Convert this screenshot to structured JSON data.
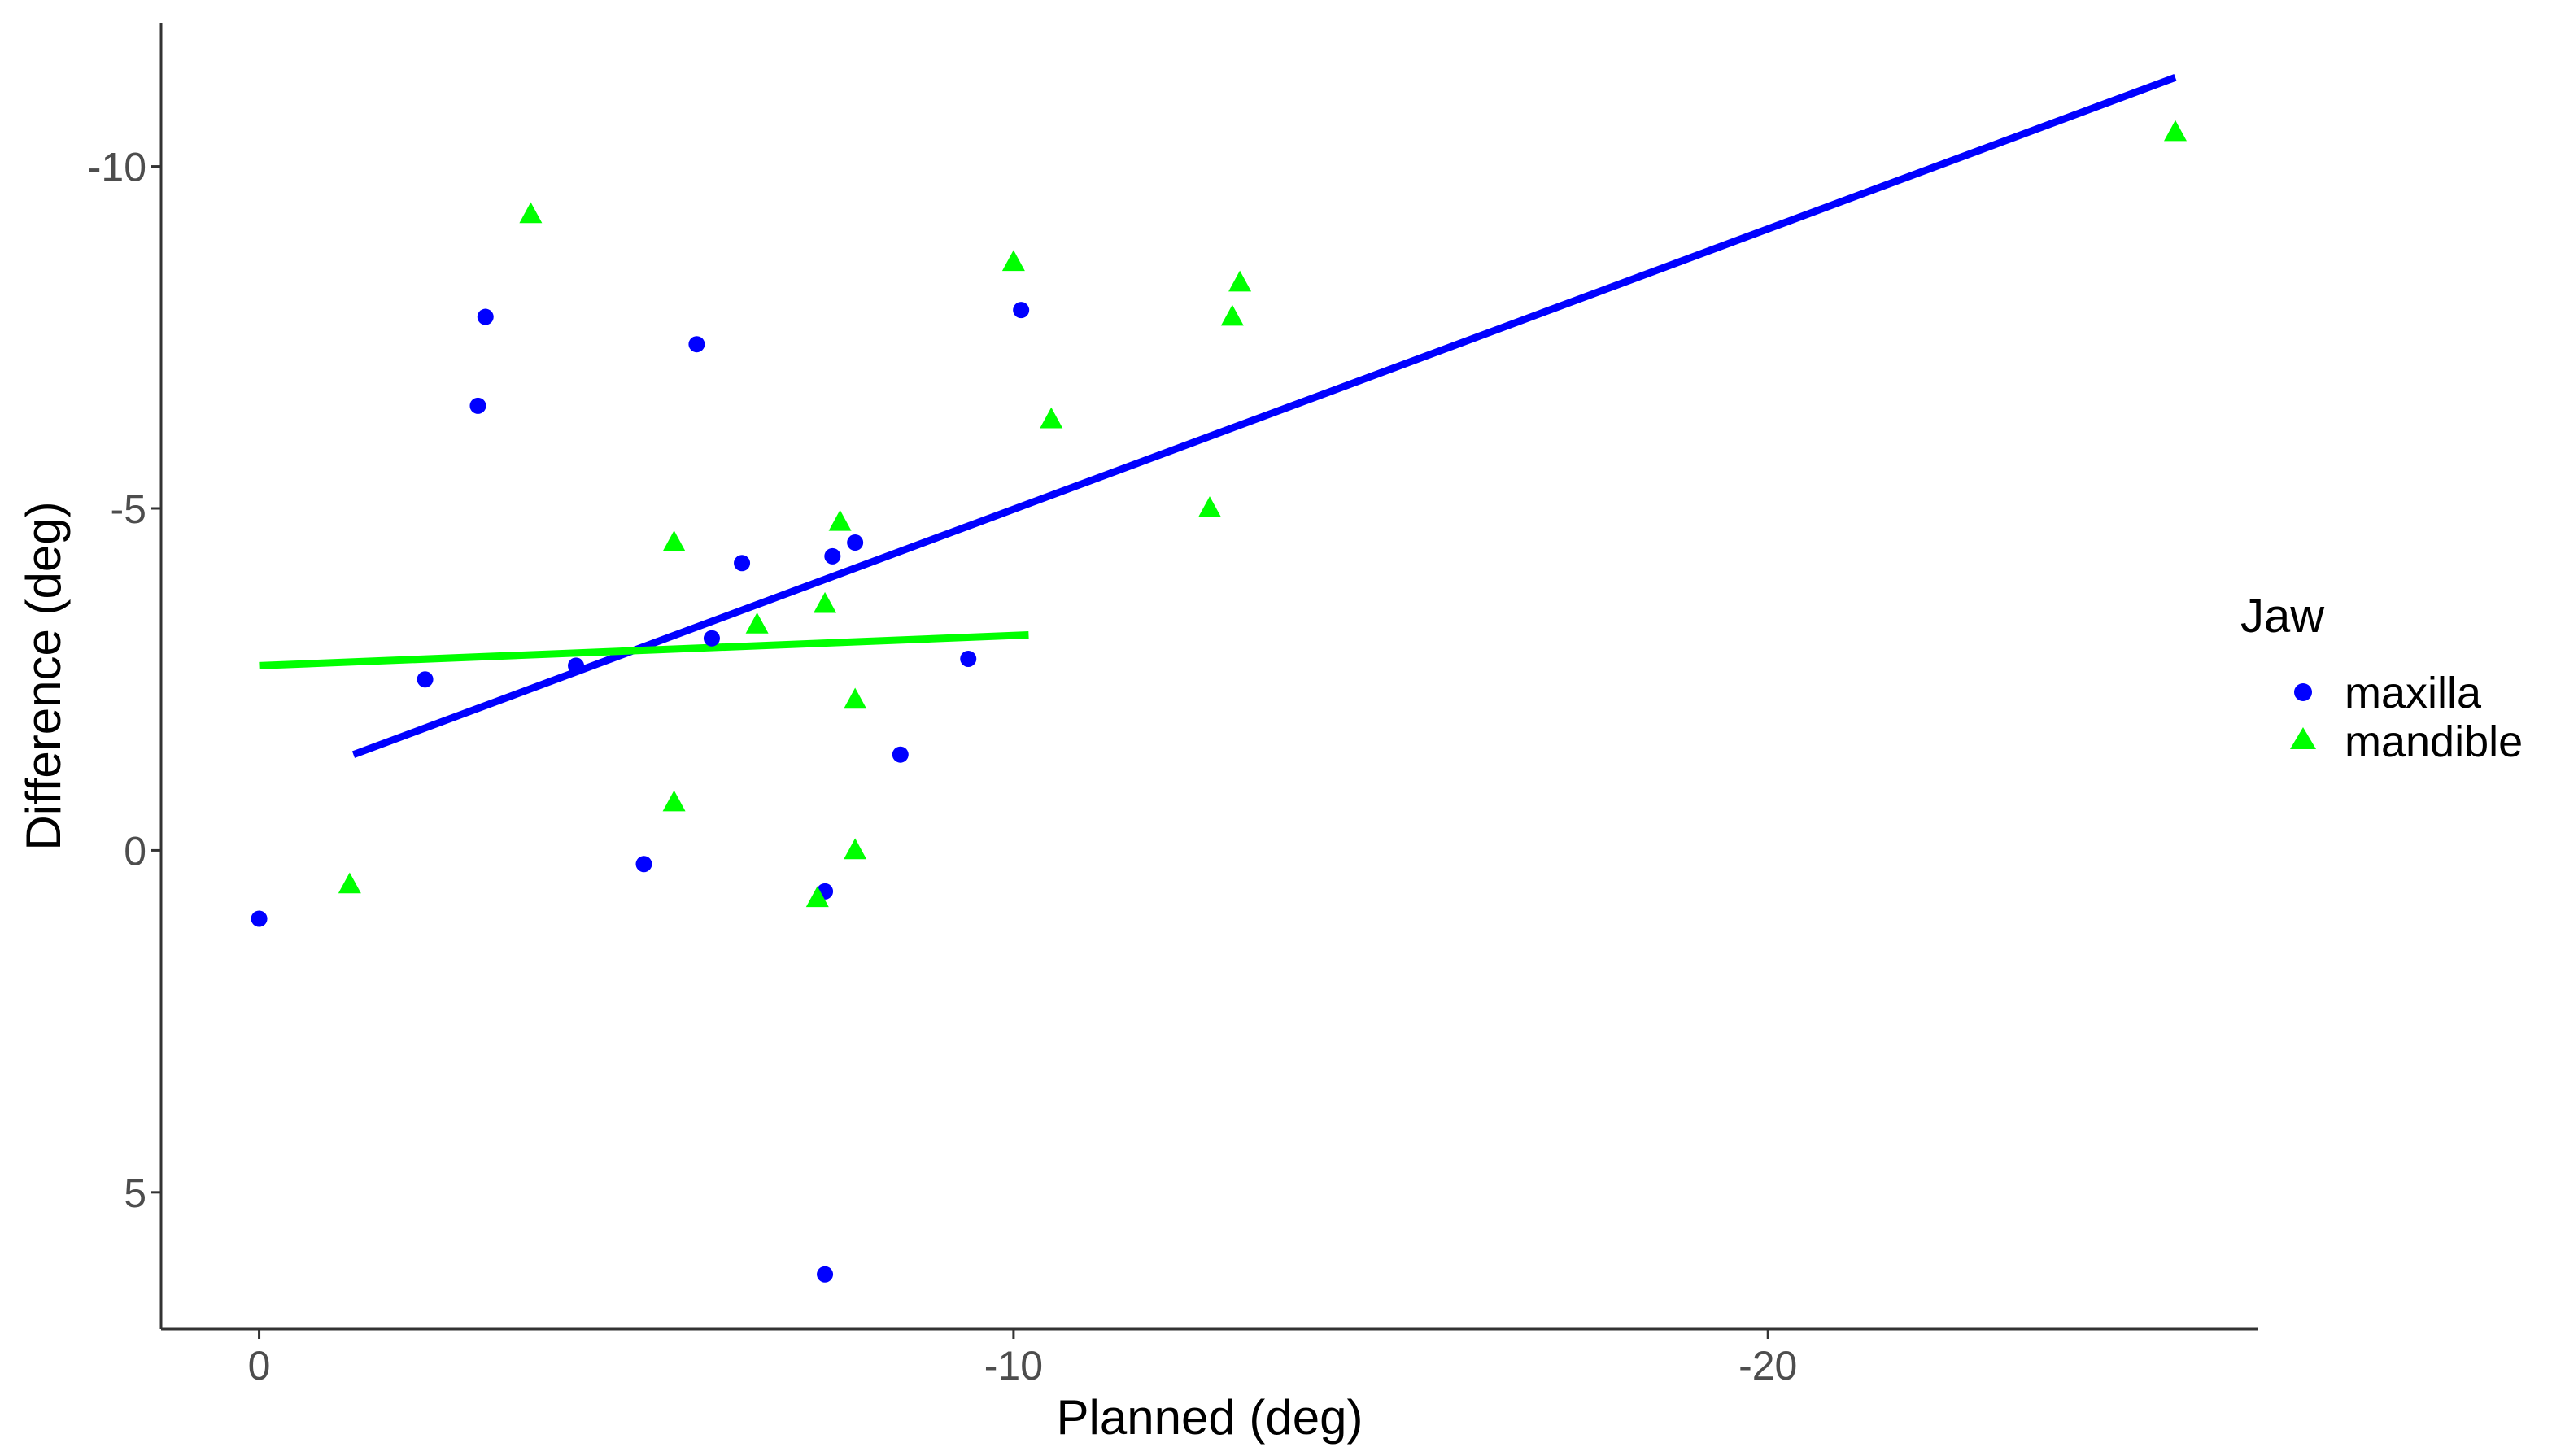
{
  "chart_data": {
    "type": "scatter",
    "xlabel": "Planned (deg)",
    "ylabel": "Difference (deg)",
    "x_reversed": true,
    "y_reversed": true,
    "xlim": [
      1.3,
      -26.5
    ],
    "ylim": [
      7.0,
      -12.1
    ],
    "x_ticks": [
      0,
      -10,
      -20
    ],
    "x_tick_labels": [
      "0",
      "-10",
      "-20"
    ],
    "y_ticks": [
      5,
      0,
      -5,
      -10
    ],
    "y_tick_labels": [
      "5",
      "0",
      "-5",
      "-10"
    ],
    "grid": false,
    "legend": {
      "title": "Jaw",
      "placement": "right"
    },
    "series": [
      {
        "name": "maxilla",
        "color": "#0000ff",
        "marker": "circle",
        "points": [
          {
            "x": 0,
            "y": 1
          },
          {
            "x": -2.2,
            "y": -2.5
          },
          {
            "x": -2.9,
            "y": -6.5
          },
          {
            "x": -3.0,
            "y": -7.8
          },
          {
            "x": -4.2,
            "y": -2.7
          },
          {
            "x": -5.1,
            "y": 0.2
          },
          {
            "x": -5.8,
            "y": -7.4
          },
          {
            "x": -6.0,
            "y": -3.1
          },
          {
            "x": -6.4,
            "y": -4.2
          },
          {
            "x": -7.5,
            "y": 0.6
          },
          {
            "x": -7.5,
            "y": 6.2
          },
          {
            "x": -7.6,
            "y": -4.3
          },
          {
            "x": -7.9,
            "y": -4.5
          },
          {
            "x": -8.5,
            "y": -1.4
          },
          {
            "x": -9.4,
            "y": -2.8
          },
          {
            "x": -10.1,
            "y": -7.9
          }
        ],
        "fit_line": {
          "x": [
            -1.25,
            -25.4
          ],
          "y": [
            -1.4,
            -11.3
          ]
        }
      },
      {
        "name": "mandible",
        "color": "#00ff00",
        "marker": "triangle",
        "points": [
          {
            "x": -1.2,
            "y": 0.5
          },
          {
            "x": -3.6,
            "y": -9.3
          },
          {
            "x": -5.5,
            "y": -4.5
          },
          {
            "x": -5.5,
            "y": -0.7
          },
          {
            "x": -6.6,
            "y": -3.3
          },
          {
            "x": -7.4,
            "y": 0.7
          },
          {
            "x": -7.5,
            "y": -3.6
          },
          {
            "x": -7.7,
            "y": -4.8
          },
          {
            "x": -7.9,
            "y": -2.2
          },
          {
            "x": -7.9,
            "y": 0.0
          },
          {
            "x": -10.0,
            "y": -8.6
          },
          {
            "x": -10.5,
            "y": -6.3
          },
          {
            "x": -12.6,
            "y": -5.0
          },
          {
            "x": -12.9,
            "y": -7.8
          },
          {
            "x": -13.0,
            "y": -8.3
          },
          {
            "x": -25.4,
            "y": -10.5
          }
        ],
        "fit_line": {
          "x": [
            0,
            -10.2
          ],
          "y": [
            -2.7,
            -3.15
          ]
        }
      }
    ]
  }
}
